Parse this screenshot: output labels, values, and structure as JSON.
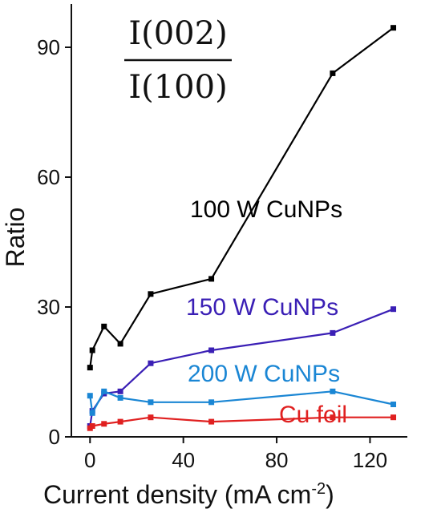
{
  "chart_data": {
    "type": "line",
    "title": "",
    "annotation": {
      "numerator": "I(002)",
      "denominator": "I(100)"
    },
    "xlabel": "Current density (mA cm",
    "xlabel_superscript": "-2",
    "xlabel_end": ")",
    "ylabel": "Ratio",
    "xlim": [
      -8,
      136
    ],
    "ylim": [
      0,
      100
    ],
    "xticks": [
      0,
      40,
      80,
      120
    ],
    "yticks": [
      0,
      30,
      60,
      90
    ],
    "grid": false,
    "series": [
      {
        "name": "100 W CuNPs",
        "color": "#000000",
        "points": [
          [
            0,
            16
          ],
          [
            1,
            20
          ],
          [
            6,
            25.5
          ],
          [
            13,
            21.5
          ],
          [
            26,
            33
          ],
          [
            52,
            36.5
          ],
          [
            104,
            84
          ],
          [
            130,
            94.5
          ]
        ]
      },
      {
        "name": "150 W CuNPs",
        "color": "#3a1fb5",
        "points": [
          [
            0,
            2.5
          ],
          [
            1,
            6
          ],
          [
            6,
            10
          ],
          [
            13,
            10.5
          ],
          [
            26,
            17
          ],
          [
            52,
            20
          ],
          [
            104,
            24
          ],
          [
            130,
            29.5
          ]
        ]
      },
      {
        "name": "200 W CuNPs",
        "color": "#1a86d4",
        "points": [
          [
            0,
            9.5
          ],
          [
            1,
            5.5
          ],
          [
            6,
            10.5
          ],
          [
            13,
            9
          ],
          [
            26,
            8
          ],
          [
            52,
            8
          ],
          [
            104,
            10.5
          ],
          [
            130,
            7.5
          ]
        ]
      },
      {
        "name": "Cu foil",
        "color": "#e02020",
        "points": [
          [
            0,
            2
          ],
          [
            1,
            2.5
          ],
          [
            6,
            3
          ],
          [
            13,
            3.5
          ],
          [
            26,
            4.5
          ],
          [
            52,
            3.5
          ],
          [
            104,
            4.5
          ],
          [
            130,
            4.5
          ]
        ]
      }
    ]
  }
}
